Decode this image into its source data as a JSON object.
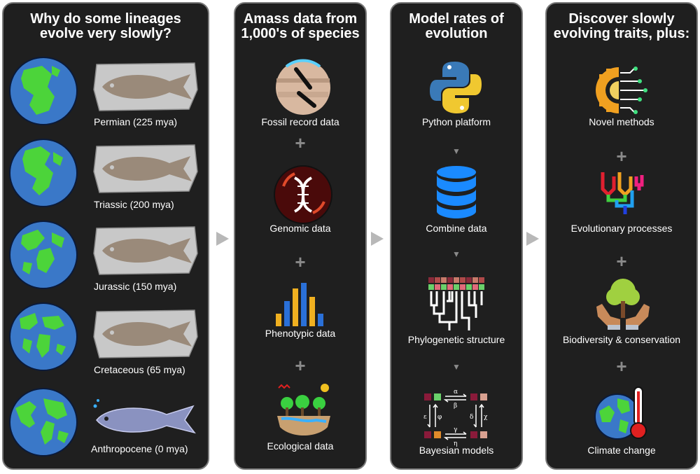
{
  "panels": [
    {
      "title": "Why do some lineages\nevolve very slowly?",
      "eras": [
        {
          "label": "Permian (225 mya)"
        },
        {
          "label": "Triassic (200 mya)"
        },
        {
          "label": "Jurassic (150 mya)"
        },
        {
          "label": "Cretaceous (65 mya)"
        },
        {
          "label": "Anthropocene (0 mya)"
        }
      ]
    },
    {
      "title": "Amass data from\n1,000's of species",
      "items": [
        {
          "label": "Fossil record data",
          "icon": "fossil-icon"
        },
        {
          "label": "Genomic data",
          "icon": "dna-icon"
        },
        {
          "label": "Phenotypic data",
          "icon": "bar-chart-icon"
        },
        {
          "label": "Ecological data",
          "icon": "ecosystem-icon"
        }
      ],
      "separator": "+"
    },
    {
      "title": "Model rates of\nevolution",
      "items": [
        {
          "label": "Python platform",
          "icon": "python-icon"
        },
        {
          "label": "Combine data",
          "icon": "database-icon"
        },
        {
          "label": "Phylogenetic structure",
          "icon": "phylogeny-icon"
        },
        {
          "label": "Bayesian models",
          "icon": "bayesian-model-icon"
        }
      ],
      "separator": "▼"
    },
    {
      "title": "Discover slowly\nevolving traits, plus:",
      "items": [
        {
          "label": "Novel methods",
          "icon": "gear-circuit-icon"
        },
        {
          "label": "Evolutionary processes",
          "icon": "colored-tree-icon"
        },
        {
          "label": "Biodiversity & conservation",
          "icon": "hands-tree-icon"
        },
        {
          "label": "Climate change",
          "icon": "earth-thermometer-icon"
        }
      ],
      "separator": "+"
    }
  ],
  "bayes_symbols": [
    "α",
    "β",
    "ε",
    "φ",
    "δ",
    "χ",
    "γ",
    "η"
  ],
  "colors": {
    "panel_bg": "#1f1f1f",
    "panel_border": "#7a7a7a",
    "ocean": "#3a78c8",
    "land": "#4cd43a",
    "fossil_rock": "#c8c8c8",
    "fish_living": "#8a92c0"
  }
}
